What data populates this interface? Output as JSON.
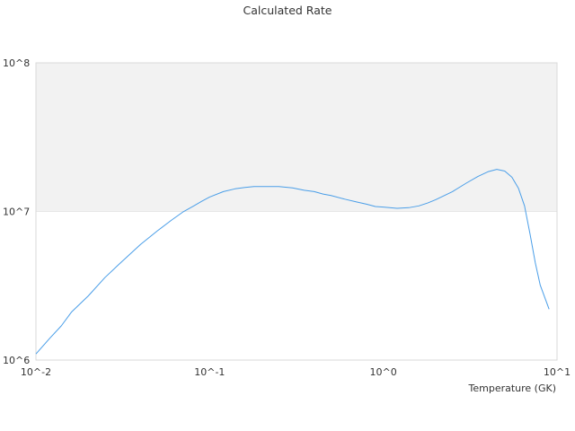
{
  "chart_data": {
    "type": "line",
    "title": "Calculated Rate",
    "xlabel": "Temperature (GK)",
    "ylabel": "",
    "xscale": "log",
    "yscale": "log",
    "xlim": [
      0.01,
      10
    ],
    "ylim": [
      1000000,
      100000000
    ],
    "x_ticks": [
      "10^-2",
      "10^-1",
      "10^0",
      "10^1"
    ],
    "y_ticks": [
      "10^6",
      "10^7",
      "10^8"
    ],
    "grid": false,
    "band_shading": "alternating",
    "colors": {
      "line": "#4a9ee8",
      "band": "#f2f2f2",
      "frame": "#d9d9d9",
      "text": "#333333"
    },
    "series": [
      {
        "x": [
          0.01,
          0.012,
          0.014,
          0.016,
          0.018,
          0.02,
          0.025,
          0.03,
          0.04,
          0.05,
          0.06,
          0.07,
          0.08,
          0.09,
          0.1,
          0.12,
          0.14,
          0.16,
          0.18,
          0.2,
          0.25,
          0.3,
          0.35,
          0.4,
          0.45,
          0.5,
          0.6,
          0.7,
          0.8,
          0.9,
          1.0,
          1.2,
          1.4,
          1.6,
          1.8,
          2.0,
          2.5,
          3.0,
          3.5,
          4.0,
          4.5,
          5.0,
          5.5,
          6.0,
          6.5,
          7.0,
          7.5,
          8.0,
          9.0
        ],
        "y": [
          1100000,
          1400000,
          1700000,
          2100000,
          2400000,
          2700000,
          3600000,
          4400000,
          6000000,
          7400000,
          8700000,
          9900000,
          10800000,
          11700000,
          12500000,
          13600000,
          14200000,
          14500000,
          14700000,
          14700000,
          14700000,
          14400000,
          13900000,
          13600000,
          13100000,
          12800000,
          12100000,
          11600000,
          11200000,
          10800000,
          10700000,
          10500000,
          10600000,
          10900000,
          11400000,
          12000000,
          13600000,
          15500000,
          17200000,
          18500000,
          19200000,
          18700000,
          17000000,
          14300000,
          10900000,
          7000000,
          4500000,
          3200000,
          2200000
        ]
      }
    ]
  }
}
